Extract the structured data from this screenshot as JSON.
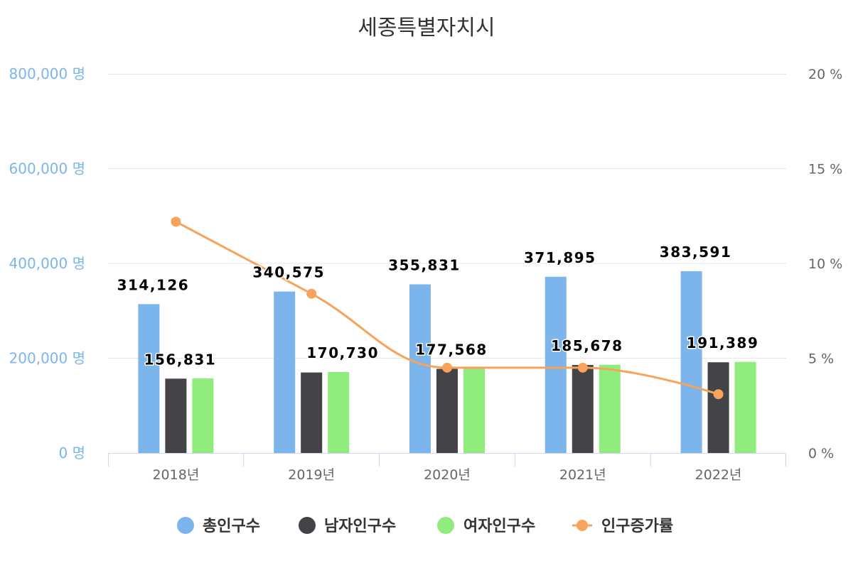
{
  "chart_data": {
    "type": "bar",
    "title": "세종특별자치시",
    "categories": [
      "2018년",
      "2019년",
      "2020년",
      "2021년",
      "2022년"
    ],
    "y_axis_left": {
      "ticks": [
        "0 명",
        "200,000 명",
        "400,000 명",
        "600,000 명",
        "800,000 명"
      ],
      "min": 0,
      "max": 800000,
      "color": "#7cb5ec"
    },
    "y_axis_right": {
      "ticks": [
        "0 %",
        "5 %",
        "10 %",
        "15 %",
        "20 %"
      ],
      "min": 0,
      "max": 20,
      "color": "#666666"
    },
    "series": [
      {
        "name": "총인구수",
        "type": "bar",
        "axis": "left",
        "color": "#7cb5ec",
        "values": [
          314126,
          340575,
          355831,
          371895,
          383591
        ],
        "labels": [
          "314,126",
          "340,575",
          "355,831",
          "371,895",
          "383,591"
        ]
      },
      {
        "name": "남자인구수",
        "type": "bar",
        "axis": "left",
        "color": "#434348",
        "values": [
          156831,
          169845,
          177568,
          185678,
          191389
        ],
        "labels": [
          "156,831",
          null,
          "177,568",
          "185,678",
          "191,389"
        ]
      },
      {
        "name": "여자인구수",
        "type": "bar",
        "axis": "left",
        "color": "#90ed7d",
        "values": [
          157295,
          170730,
          178263,
          186217,
          192202
        ],
        "labels": [
          null,
          "170,730",
          null,
          null,
          null
        ]
      },
      {
        "name": "인구증가률",
        "type": "line",
        "axis": "right",
        "color": "#f7a35c",
        "values": [
          12.2,
          8.4,
          4.5,
          4.5,
          3.1
        ]
      }
    ],
    "legend": "bottom-center",
    "grid": true
  }
}
